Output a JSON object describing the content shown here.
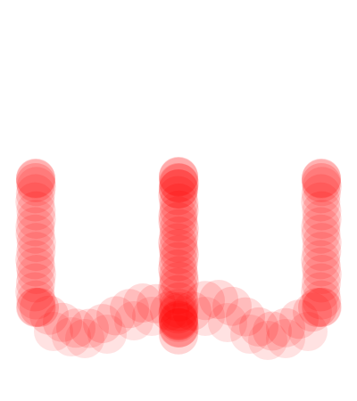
{
  "canvas": {
    "background_color": "#ffffff",
    "stroke_color": "#ff0000",
    "stroke_opacity": 0.14,
    "glyph": "ω-like three-stem brush shape"
  }
}
